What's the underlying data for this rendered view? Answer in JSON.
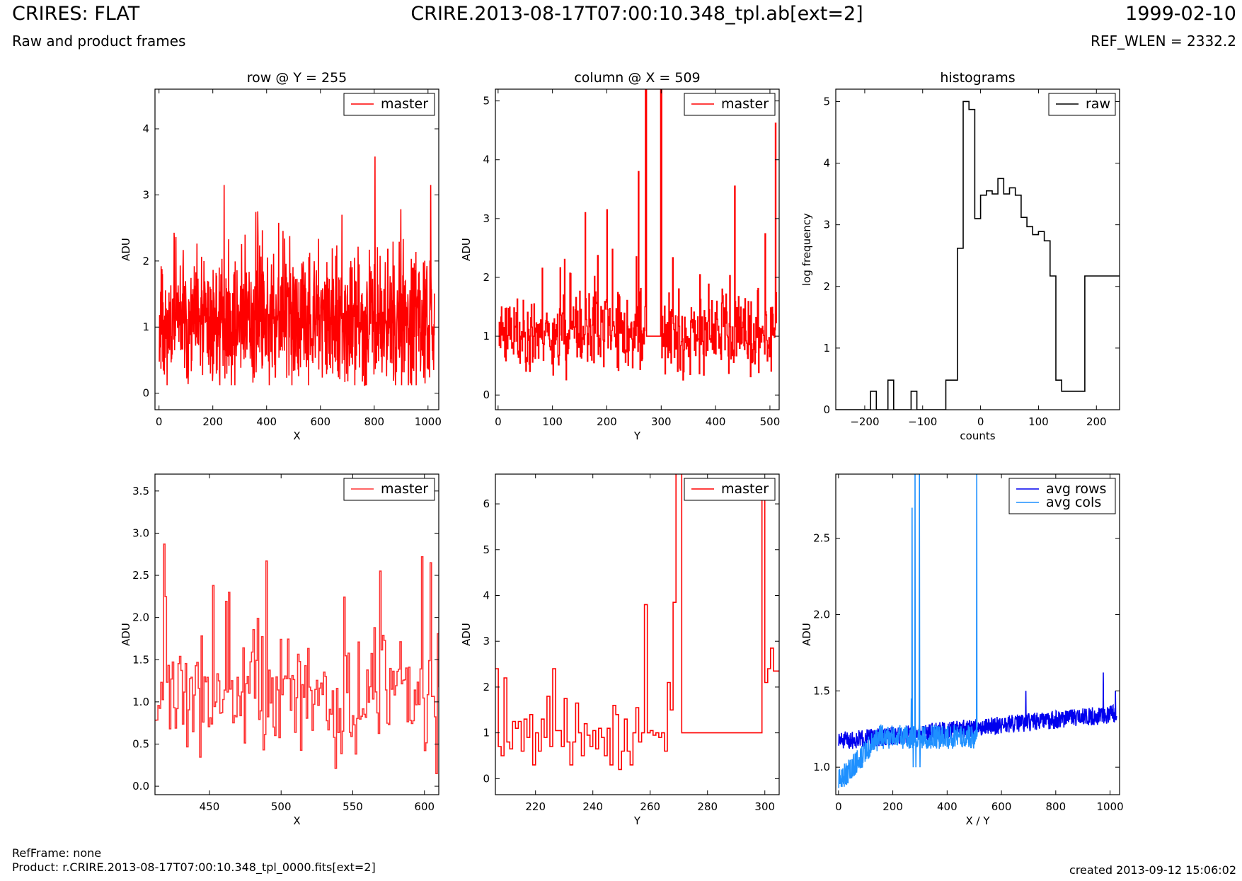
{
  "header": {
    "title": "CRIRES: FLAT",
    "subtitle": "Raw and product frames",
    "file": "CRIRE.2013-08-17T07:00:10.348_tpl.ab[ext=2]",
    "date": "1999-02-10",
    "ref_wlen": "REF_WLEN = 2332.2"
  },
  "footer": {
    "refframe": "RefFrame: none",
    "product": "Product: r.CRIRE.2013-08-17T07:00:10.348_tpl_0000.fits[ext=2]",
    "created": "created 2013-09-12 15:06:02"
  },
  "colors": {
    "master": "#ff0000",
    "master_zoom": "#ff3333",
    "raw": "#000000",
    "avg_rows": "#0000ee",
    "avg_cols": "#1e90ff"
  },
  "chart_data": [
    {
      "id": "row",
      "type": "line",
      "title": "row @ Y = 255",
      "xlabel": "X",
      "ylabel": "ADU",
      "xlim": [
        -15,
        1040
      ],
      "ylim": [
        -0.25,
        4.6
      ],
      "xticks": [
        0,
        200,
        400,
        600,
        800,
        1000
      ],
      "yticks": [
        0,
        1,
        2,
        3,
        4
      ],
      "series": [
        {
          "name": "master",
          "color": "#ff0000",
          "step": false,
          "n": 1024,
          "gen": {
            "kind": "noise",
            "x0": 1,
            "x1": 1024,
            "base": 1.05,
            "amp": 0.85,
            "min": 0.12,
            "max": 3.6,
            "seed": 11
          },
          "spikes": [
            [
              242,
              3.15
            ],
            [
              803,
              3.58
            ],
            [
              1010,
              3.15
            ],
            [
              680,
              2.7
            ]
          ]
        }
      ]
    },
    {
      "id": "column",
      "type": "line",
      "title": "column @ X = 509",
      "xlabel": "Y",
      "ylabel": "ADU",
      "xlim": [
        -5,
        517
      ],
      "ylim": [
        -0.25,
        5.2
      ],
      "xticks": [
        0,
        100,
        200,
        300,
        400,
        500
      ],
      "yticks": [
        0,
        1,
        2,
        3,
        4,
        5
      ],
      "series": [
        {
          "name": "master",
          "color": "#ff0000",
          "step": true,
          "n": 512,
          "gen": {
            "kind": "noise",
            "x0": 1,
            "x1": 512,
            "base": 1.05,
            "amp": 0.6,
            "min": 0.1,
            "max": 3.0,
            "seed": 23
          },
          "flat": [
            [
              272,
              300,
              1.0
            ]
          ],
          "spikes": [
            [
              258,
              3.8
            ],
            [
              271,
              5.3
            ],
            [
              272,
              5.3
            ],
            [
              299,
              5.3
            ],
            [
              300,
              5.3
            ],
            [
              435,
              3.55
            ],
            [
              510,
              4.62
            ],
            [
              160,
              3.1
            ],
            [
              200,
              3.15
            ]
          ]
        }
      ]
    },
    {
      "id": "histograms",
      "type": "line",
      "title": "histograms",
      "xlabel": "counts",
      "ylabel": "log frequency",
      "xlim": [
        -250,
        240
      ],
      "ylim": [
        0,
        5.2
      ],
      "xticks": [
        -200,
        -100,
        0,
        100,
        200
      ],
      "yticks": [
        0,
        1,
        2,
        3,
        4,
        5
      ],
      "series": [
        {
          "name": "raw",
          "color": "#000000",
          "step": true,
          "x": [
            -250,
            -230,
            -210,
            -190,
            -180,
            -170,
            -160,
            -150,
            -140,
            -130,
            -120,
            -110,
            -100,
            -90,
            -80,
            -70,
            -60,
            -50,
            -40,
            -30,
            -20,
            -10,
            0,
            10,
            20,
            30,
            40,
            50,
            60,
            70,
            80,
            90,
            100,
            110,
            120,
            130,
            140,
            150,
            160,
            170,
            180,
            190,
            200,
            210,
            220,
            230,
            240
          ],
          "y": [
            0,
            0,
            0,
            0.3,
            0,
            0,
            0.48,
            0,
            0,
            0,
            0.3,
            0,
            0,
            0,
            0,
            0,
            0.48,
            0.48,
            2.62,
            5.0,
            4.87,
            3.1,
            3.48,
            3.55,
            3.5,
            3.75,
            3.5,
            3.6,
            3.48,
            3.12,
            2.97,
            2.84,
            2.89,
            2.74,
            2.17,
            0.48,
            0.3,
            0.3,
            0.3,
            0.3,
            2.17,
            2.17,
            2.17,
            2.17,
            2.17,
            2.17,
            2.17
          ]
        }
      ]
    },
    {
      "id": "row-zoom",
      "type": "line",
      "title": "",
      "xlabel": "X",
      "ylabel": "ADU",
      "xlim": [
        412,
        610
      ],
      "ylim": [
        -0.1,
        3.7
      ],
      "xticks": [
        450,
        500,
        550,
        600
      ],
      "yticks": [
        0.0,
        0.5,
        1.0,
        1.5,
        2.0,
        2.5,
        3.0,
        3.5
      ],
      "series": [
        {
          "name": "master",
          "color": "#ff3333",
          "step": true,
          "n": 198,
          "gen": {
            "kind": "noise",
            "x0": 412,
            "x1": 610,
            "base": 1.05,
            "amp": 0.65,
            "min": 0.1,
            "max": 2.9,
            "seed": 37
          },
          "spikes": [
            [
              418,
              2.87
            ],
            [
              452,
              2.38
            ],
            [
              489,
              2.67
            ],
            [
              569,
              2.55
            ],
            [
              598,
              2.72
            ],
            [
              604,
              2.65
            ],
            [
              608,
              0.15
            ]
          ]
        }
      ]
    },
    {
      "id": "column-zoom",
      "type": "line",
      "title": "",
      "xlabel": "Y",
      "ylabel": "ADU",
      "xlim": [
        206,
        305
      ],
      "ylim": [
        -0.35,
        6.65
      ],
      "xticks": [
        220,
        240,
        260,
        280,
        300
      ],
      "yticks": [
        0,
        1,
        2,
        3,
        4,
        5,
        6
      ],
      "series": [
        {
          "name": "master",
          "color": "#ff0000",
          "step": true,
          "x": [
            206,
            207,
            208,
            209,
            210,
            211,
            212,
            213,
            214,
            215,
            216,
            217,
            218,
            219,
            220,
            221,
            222,
            223,
            224,
            225,
            226,
            227,
            228,
            229,
            230,
            231,
            232,
            233,
            234,
            235,
            236,
            237,
            238,
            239,
            240,
            241,
            242,
            243,
            244,
            245,
            246,
            247,
            248,
            249,
            250,
            251,
            252,
            253,
            254,
            255,
            256,
            257,
            258,
            259,
            260,
            261,
            262,
            263,
            264,
            265,
            266,
            267,
            268,
            269,
            270,
            271,
            272,
            299,
            300,
            301,
            302,
            303,
            304,
            305
          ],
          "y": [
            2.4,
            0.7,
            0.5,
            2.2,
            0.8,
            0.65,
            1.25,
            1.1,
            1.25,
            0.6,
            1.3,
            0.9,
            1.4,
            0.3,
            1.0,
            0.6,
            1.3,
            0.9,
            1.8,
            0.7,
            2.4,
            1.05,
            1.05,
            0.7,
            1.75,
            0.8,
            0.3,
            0.8,
            1.65,
            1.0,
            0.5,
            1.2,
            0.95,
            0.7,
            1.05,
            0.65,
            1.1,
            0.9,
            0.5,
            1.1,
            0.3,
            1.6,
            1.4,
            0.2,
            0.6,
            1.3,
            0.6,
            0.3,
            1.0,
            1.55,
            0.8,
            1.0,
            3.8,
            1.0,
            1.05,
            0.95,
            1.0,
            0.9,
            1.0,
            0.6,
            2.1,
            1.5,
            3.85,
            6.7,
            6.7,
            1.0,
            1.0,
            6.5,
            2.1,
            2.4,
            2.85,
            2.35,
            2.35,
            2.35
          ]
        }
      ]
    },
    {
      "id": "averages",
      "type": "line",
      "title": "",
      "xlabel": "X / Y",
      "ylabel": "ADU",
      "xlim": [
        -10,
        1035
      ],
      "ylim": [
        0.82,
        2.92
      ],
      "xticks": [
        0,
        200,
        400,
        600,
        800,
        1000
      ],
      "yticks": [
        1.0,
        1.5,
        2.0,
        2.5
      ],
      "series": [
        {
          "name": "avg rows",
          "color": "#0000ee",
          "step": false,
          "n": 1024,
          "gen": {
            "kind": "trend",
            "x0": 1,
            "x1": 1024,
            "start": 1.17,
            "end": 1.35,
            "amp": 0.06,
            "seed": 51
          },
          "spikes": [
            [
              690,
              1.5
            ],
            [
              975,
              1.62
            ],
            [
              1020,
              1.5
            ]
          ]
        },
        {
          "name": "avg cols",
          "color": "#1e90ff",
          "step": false,
          "n": 512,
          "gen": {
            "kind": "trend",
            "x0": 1,
            "x1": 512,
            "start": 0.9,
            "end": 1.2,
            "amp": 0.08,
            "seed": 63,
            "ramp": 150
          },
          "spikes": [
            [
              268,
              1.45
            ],
            [
              271,
              2.7
            ],
            [
              275,
              1.0
            ],
            [
              282,
              2.92
            ],
            [
              285,
              1.0
            ],
            [
              298,
              2.92
            ],
            [
              300,
              1.0
            ],
            [
              509,
              2.92
            ],
            [
              510,
              1.2
            ]
          ]
        }
      ]
    }
  ]
}
